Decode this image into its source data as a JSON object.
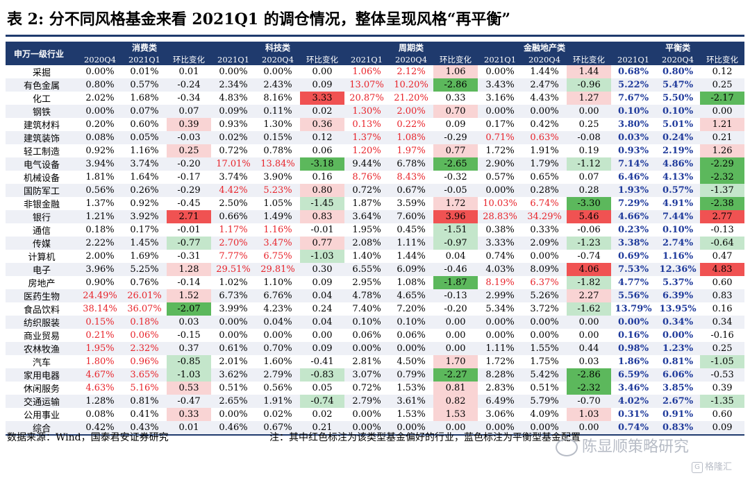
{
  "title": "表 2:  分不同风格基金来看 2021Q1 的调仓情况，整体呈现风格“再平衡”",
  "header": {
    "industry": "申万一级行业",
    "groups": [
      "消费类",
      "科技类",
      "周期类",
      "金融地产类",
      "平衡类"
    ],
    "sub": [
      "2020Q4",
      "2021Q1",
      "环比变化",
      "2021Q1",
      "2020Q4",
      "环比变化",
      "2021Q1",
      "2020Q4",
      "环比变化",
      "2021Q1",
      "2020Q4",
      "环比变化",
      "2021Q1",
      "2020Q4",
      "环比变化"
    ]
  },
  "colors": {
    "header_bg": "#1f3a6d",
    "stripe": "#eef0f6",
    "red_text": "#e8232a",
    "balanced_text": "#1f3a9b",
    "pink": "#f9d4d4",
    "red_cell": "#f05252",
    "light_green": "#c4e6cb",
    "green_cell": "#5cb85c"
  },
  "rows": [
    {
      "name": "采掘",
      "cells": [
        "0.00%",
        "0.01%",
        "0.01",
        "0.00%",
        "0.00%",
        "0.00",
        "1.06%",
        "2.12%",
        "1.06",
        "0.00%",
        "1.44%",
        "1.44",
        "0.68%",
        "0.80%",
        "0.12"
      ],
      "red": [
        6,
        7
      ],
      "bal": [
        12,
        13
      ],
      "fill": {
        "8": "pink",
        "11": "pink"
      }
    },
    {
      "name": "有色金属",
      "cells": [
        "0.80%",
        "0.57%",
        "-0.24",
        "2.34%",
        "2.43%",
        "0.09",
        "13.07%",
        "10.20%",
        "-2.86",
        "3.43%",
        "2.47%",
        "-0.96",
        "5.22%",
        "5.47%",
        "0.25"
      ],
      "red": [
        6,
        7
      ],
      "bal": [
        12,
        13
      ],
      "fill": {
        "8": "green_cell",
        "11": "light_green"
      }
    },
    {
      "name": "化工",
      "cells": [
        "2.02%",
        "1.68%",
        "-0.34",
        "4.83%",
        "8.16%",
        "3.33",
        "20.87%",
        "21.20%",
        "0.33",
        "3.16%",
        "4.43%",
        "1.27",
        "7.67%",
        "5.50%",
        "-2.17"
      ],
      "red": [
        6,
        7
      ],
      "bal": [
        12,
        13
      ],
      "fill": {
        "5": "red_cell",
        "11": "pink",
        "14": "green_cell"
      }
    },
    {
      "name": "钢铁",
      "cells": [
        "0.00%",
        "0.07%",
        "0.07",
        "0.09%",
        "0.11%",
        "0.02",
        "1.30%",
        "2.00%",
        "0.70",
        "0.00%",
        "0.00%",
        "0.00",
        "0.10%",
        "0.10%",
        "0.00"
      ],
      "red": [
        6,
        7
      ],
      "bal": [
        12,
        13
      ],
      "fill": {
        "8": "pink"
      }
    },
    {
      "name": "建筑材料",
      "cells": [
        "0.20%",
        "0.60%",
        "0.39",
        "0.93%",
        "1.30%",
        "0.36",
        "0.13%",
        "0.22%",
        "0.09",
        "0.17%",
        "0.42%",
        "0.25",
        "3.80%",
        "5.01%",
        "1.21"
      ],
      "red": [
        6,
        7
      ],
      "bal": [
        12,
        13
      ],
      "fill": {
        "2": "pink",
        "5": "pink",
        "14": "pink"
      }
    },
    {
      "name": "建筑装饰",
      "cells": [
        "0.08%",
        "0.05%",
        "-0.03",
        "0.02%",
        "0.15%",
        "0.12",
        "1.37%",
        "1.08%",
        "-0.29",
        "0.71%",
        "0.63%",
        "-0.08",
        "0.03%",
        "0.24%",
        "0.21"
      ],
      "red": [
        6,
        7,
        9,
        10
      ],
      "bal": [
        12,
        13
      ],
      "fill": {}
    },
    {
      "name": "轻工制造",
      "cells": [
        "0.92%",
        "1.16%",
        "0.25",
        "0.72%",
        "0.78%",
        "0.06",
        "1.20%",
        "1.97%",
        "0.77",
        "1.72%",
        "1.91%",
        "0.19",
        "0.93%",
        "2.19%",
        "1.26"
      ],
      "red": [
        6,
        7
      ],
      "bal": [
        12,
        13
      ],
      "fill": {
        "2": "pink",
        "8": "pink",
        "14": "pink"
      }
    },
    {
      "name": "电气设备",
      "cells": [
        "3.94%",
        "3.74%",
        "-0.20",
        "17.01%",
        "13.84%",
        "-3.18",
        "9.44%",
        "6.78%",
        "-2.65",
        "2.90%",
        "1.79%",
        "-1.12",
        "7.14%",
        "4.86%",
        "-2.29"
      ],
      "red": [
        3,
        4
      ],
      "bal": [
        12,
        13
      ],
      "fill": {
        "5": "green_cell",
        "8": "green_cell",
        "11": "light_green",
        "14": "green_cell"
      }
    },
    {
      "name": "机械设备",
      "cells": [
        "1.81%",
        "1.64%",
        "-0.17",
        "3.74%",
        "3.90%",
        "0.16",
        "8.76%",
        "8.43%",
        "-0.32",
        "0.57%",
        "0.65%",
        "0.07",
        "6.46%",
        "4.13%",
        "-2.32"
      ],
      "red": [
        6,
        7
      ],
      "bal": [
        12,
        13
      ],
      "fill": {
        "14": "green_cell"
      }
    },
    {
      "name": "国防军工",
      "cells": [
        "0.56%",
        "0.26%",
        "-0.29",
        "4.42%",
        "5.23%",
        "0.80",
        "0.72%",
        "0.67%",
        "-0.05",
        "0.00%",
        "0.28%",
        "0.28",
        "1.93%",
        "0.57%",
        "-1.37"
      ],
      "red": [
        3,
        4
      ],
      "bal": [
        12,
        13
      ],
      "fill": {
        "5": "pink",
        "14": "light_green"
      }
    },
    {
      "name": "非银金融",
      "cells": [
        "1.37%",
        "0.92%",
        "-0.45",
        "2.50%",
        "1.05%",
        "-1.45",
        "1.87%",
        "3.59%",
        "1.72",
        "10.03%",
        "6.74%",
        "-3.30",
        "7.29%",
        "4.91%",
        "-2.38"
      ],
      "red": [
        9,
        10
      ],
      "bal": [
        12,
        13
      ],
      "fill": {
        "5": "light_green",
        "8": "pink",
        "11": "green_cell",
        "14": "green_cell"
      }
    },
    {
      "name": "银行",
      "cells": [
        "1.21%",
        "3.92%",
        "2.71",
        "0.66%",
        "1.49%",
        "0.83",
        "3.64%",
        "7.60%",
        "3.96",
        "28.83%",
        "34.29%",
        "5.46",
        "4.66%",
        "7.44%",
        "2.77"
      ],
      "red": [
        9,
        10
      ],
      "bal": [
        12,
        13
      ],
      "fill": {
        "2": "red_cell",
        "5": "pink",
        "8": "red_cell",
        "11": "red_cell",
        "14": "red_cell"
      }
    },
    {
      "name": "通信",
      "cells": [
        "0.18%",
        "0.17%",
        "-0.01",
        "1.17%",
        "1.16%",
        "-0.01",
        "1.95%",
        "0.45%",
        "-1.51",
        "0.38%",
        "0.33%",
        "-0.06",
        "0.23%",
        "0.10%",
        "-0.13"
      ],
      "red": [
        3,
        4
      ],
      "bal": [
        12,
        13
      ],
      "fill": {
        "8": "light_green"
      }
    },
    {
      "name": "传媒",
      "cells": [
        "2.22%",
        "1.45%",
        "-0.77",
        "2.70%",
        "3.47%",
        "0.77",
        "2.08%",
        "1.11%",
        "-0.97",
        "3.33%",
        "2.09%",
        "-1.23",
        "3.38%",
        "2.74%",
        "-0.64"
      ],
      "red": [
        3,
        4
      ],
      "bal": [
        12,
        13
      ],
      "fill": {
        "2": "light_green",
        "5": "pink",
        "8": "light_green",
        "11": "light_green",
        "14": "light_green"
      }
    },
    {
      "name": "计算机",
      "cells": [
        "2.00%",
        "1.69%",
        "-0.31",
        "7.77%",
        "6.75%",
        "-1.03",
        "1.40%",
        "1.44%",
        "0.04",
        "0.74%",
        "0.00%",
        "-0.74",
        "0.69%",
        "1.16%",
        "0.47"
      ],
      "red": [
        3,
        4
      ],
      "bal": [
        12,
        13
      ],
      "fill": {
        "5": "light_green"
      }
    },
    {
      "name": "电子",
      "cells": [
        "3.96%",
        "5.25%",
        "1.28",
        "29.51%",
        "29.81%",
        "0.30",
        "6.55%",
        "6.09%",
        "-0.46",
        "4.03%",
        "8.09%",
        "4.06",
        "7.53%",
        "12.36%",
        "4.83"
      ],
      "red": [
        3,
        4
      ],
      "bal": [
        12,
        13
      ],
      "fill": {
        "2": "pink",
        "11": "red_cell",
        "14": "red_cell"
      }
    },
    {
      "name": "房地产",
      "cells": [
        "0.90%",
        "0.76%",
        "-0.14",
        "1.02%",
        "1.10%",
        "0.09",
        "2.95%",
        "1.08%",
        "-1.87",
        "8.19%",
        "6.37%",
        "-1.82",
        "4.77%",
        "5.37%",
        "0.60"
      ],
      "red": [
        9,
        10
      ],
      "bal": [
        12,
        13
      ],
      "fill": {
        "8": "green_cell",
        "11": "light_green"
      }
    },
    {
      "name": "医药生物",
      "cells": [
        "24.49%",
        "26.01%",
        "1.52",
        "6.73%",
        "6.76%",
        "0.04",
        "4.78%",
        "4.65%",
        "-0.13",
        "2.99%",
        "5.26%",
        "2.27",
        "5.56%",
        "6.39%",
        "0.83"
      ],
      "red": [
        0,
        1
      ],
      "bal": [
        12,
        13
      ],
      "fill": {
        "2": "pink",
        "11": "pink"
      }
    },
    {
      "name": "食品饮料",
      "cells": [
        "38.14%",
        "36.07%",
        "-2.07",
        "3.99%",
        "4.23%",
        "0.24",
        "7.40%",
        "7.20%",
        "-0.20",
        "5.34%",
        "3.72%",
        "-1.62",
        "13.79%",
        "13.95%",
        "0.16"
      ],
      "red": [
        0,
        1
      ],
      "bal": [
        12,
        13
      ],
      "fill": {
        "2": "green_cell",
        "11": "light_green"
      }
    },
    {
      "name": "纺织服装",
      "cells": [
        "0.15%",
        "0.18%",
        "0.03",
        "0.00%",
        "0.04%",
        "0.04",
        "0.10%",
        "0.10%",
        "0.00",
        "0.00%",
        "0.00%",
        "0.00",
        "0.00%",
        "0.34%",
        "0.34"
      ],
      "red": [
        0,
        1
      ],
      "bal": [
        12,
        13
      ],
      "fill": {}
    },
    {
      "name": "商业贸易",
      "cells": [
        "0.21%",
        "0.06%",
        "-0.15",
        "0.00%",
        "0.00%",
        "0.00",
        "0.06%",
        "0.06%",
        "0.00",
        "0.00%",
        "0.00%",
        "0.00",
        "0.16%",
        "0.00%",
        "-0.16"
      ],
      "red": [
        0,
        1
      ],
      "bal": [
        12,
        13
      ],
      "fill": {}
    },
    {
      "name": "农林牧渔",
      "cells": [
        "1.95%",
        "2.32%",
        "0.37",
        "0.61%",
        "0.70%",
        "0.09",
        "0.00%",
        "0.00%",
        "0.00",
        "1.11%",
        "1.55%",
        "0.44",
        "0.98%",
        "1.23%",
        "0.25"
      ],
      "red": [
        0,
        1
      ],
      "bal": [
        12,
        13
      ],
      "fill": {}
    },
    {
      "name": "汽车",
      "cells": [
        "1.80%",
        "0.96%",
        "-0.85",
        "2.01%",
        "1.60%",
        "-0.41",
        "2.81%",
        "4.50%",
        "1.70",
        "1.72%",
        "1.75%",
        "0.03",
        "1.86%",
        "0.81%",
        "-1.05"
      ],
      "red": [
        0,
        1
      ],
      "bal": [
        12,
        13
      ],
      "fill": {
        "2": "light_green",
        "8": "pink",
        "14": "light_green"
      }
    },
    {
      "name": "家用电器",
      "cells": [
        "4.67%",
        "3.65%",
        "-1.03",
        "3.62%",
        "2.79%",
        "-0.83",
        "3.07%",
        "0.79%",
        "-2.27",
        "8.28%",
        "5.42%",
        "-2.86",
        "6.59%",
        "6.06%",
        "-0.53"
      ],
      "red": [
        0,
        1
      ],
      "bal": [
        12,
        13
      ],
      "fill": {
        "2": "light_green",
        "5": "light_green",
        "8": "green_cell",
        "11": "green_cell"
      }
    },
    {
      "name": "休闲服务",
      "cells": [
        "4.63%",
        "5.16%",
        "0.53",
        "0.51%",
        "0.56%",
        "0.05",
        "0.72%",
        "1.53%",
        "0.81",
        "2.83%",
        "0.51%",
        "-2.32",
        "3.46%",
        "3.85%",
        "0.39"
      ],
      "red": [
        0,
        1
      ],
      "bal": [
        12,
        13
      ],
      "fill": {
        "2": "pink",
        "8": "pink",
        "11": "green_cell"
      }
    },
    {
      "name": "交通运输",
      "cells": [
        "1.28%",
        "0.81%",
        "-0.47",
        "2.65%",
        "1.91%",
        "-0.74",
        "2.79%",
        "3.61%",
        "0.82",
        "6.49%",
        "5.79%",
        "-0.70",
        "4.02%",
        "2.67%",
        "-1.35"
      ],
      "red": [],
      "bal": [
        12,
        13
      ],
      "fill": {
        "5": "light_green",
        "8": "pink",
        "14": "light_green"
      }
    },
    {
      "name": "公用事业",
      "cells": [
        "0.08%",
        "0.41%",
        "0.33",
        "0.00%",
        "0.02%",
        "0.02",
        "0.00%",
        "1.53%",
        "1.53",
        "3.06%",
        "4.09%",
        "1.03",
        "0.31%",
        "0.91%",
        "0.60"
      ],
      "red": [],
      "bal": [
        12,
        13
      ],
      "fill": {
        "2": "pink",
        "8": "pink",
        "11": "pink"
      }
    },
    {
      "name": "综合",
      "cells": [
        "0.42%",
        "0.43%",
        "0.01",
        "0.46%",
        "0.67%",
        "0.21",
        "0.00%",
        "0.00%",
        "0.00",
        "0.00%",
        "0.00%",
        "0.00",
        "0.74%",
        "0.83%",
        "0.09"
      ],
      "red": [],
      "bal": [
        12,
        13
      ],
      "fill": {}
    }
  ],
  "footer": {
    "source": "数据来源：Wind，国泰君安证券研究",
    "note": "注：其中红色标注为该类型基金偏好的行业，蓝色标注为平衡型基金配置"
  },
  "watermark": {
    "text": "陈显顺策略研究",
    "icon": "wechat-icon",
    "brand": "格隆汇",
    "brand_icon": "gelonghui-logo-icon"
  }
}
